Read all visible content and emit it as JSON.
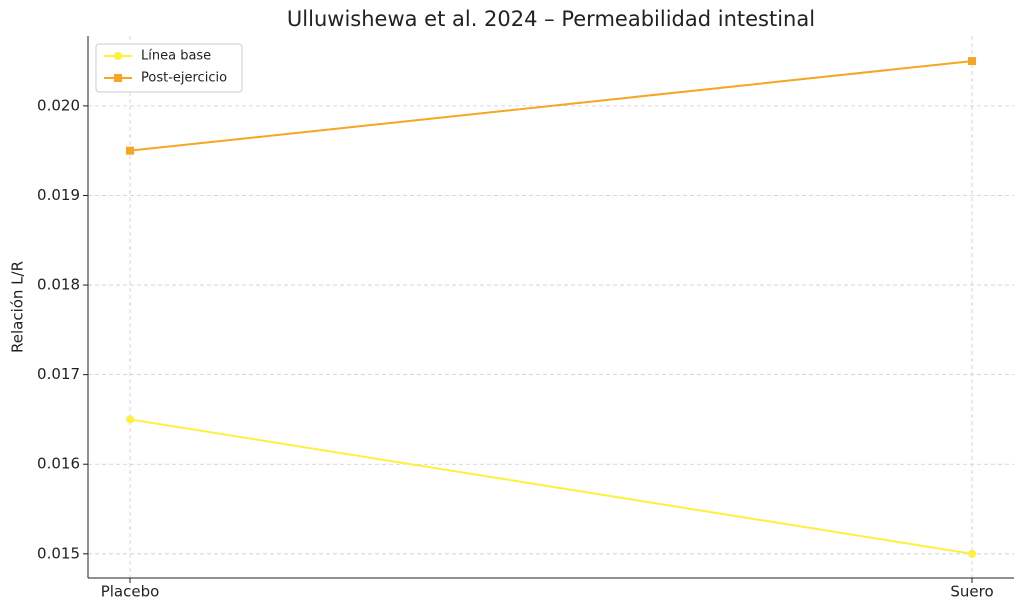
{
  "chart_data": {
    "type": "line",
    "title": "Ulluwishewa et al. 2024 – Permeabilidad intestinal",
    "ylabel": "Relación L/R",
    "categories": [
      "Placebo",
      "Suero"
    ],
    "series": [
      {
        "name": "Línea base",
        "color": "#fff03c",
        "marker": "circle",
        "values": [
          0.0165,
          0.015
        ]
      },
      {
        "name": "Post-ejercicio",
        "color": "#f5a623",
        "marker": "square",
        "values": [
          0.0195,
          0.0205
        ]
      }
    ],
    "ylim": [
      0.01473,
      0.02078
    ],
    "yticks": [
      0.015,
      0.016,
      0.017,
      0.018,
      0.019,
      {
        "value": 0.02,
        "label": "0.020"
      }
    ],
    "grid": true,
    "legend": "upper-left"
  }
}
